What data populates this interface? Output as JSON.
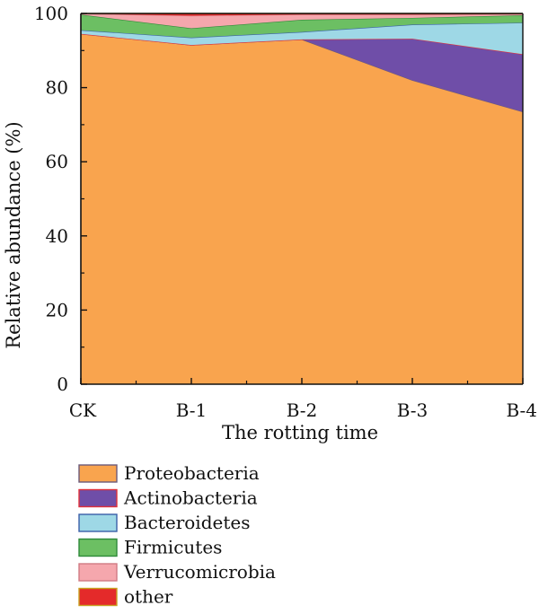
{
  "chart_data": {
    "type": "area",
    "stacked": true,
    "categories": [
      "CK",
      "B-1",
      "B-2",
      "B-3",
      "B-4"
    ],
    "xlabel": "The rotting time",
    "ylabel": "Relative abundance (%)",
    "ylim": [
      0,
      100
    ],
    "yticks": [
      0,
      20,
      40,
      60,
      80,
      100
    ],
    "grid": false,
    "legend_position": "bottom-left",
    "series": [
      {
        "name": "Proteobacteria",
        "values": [
          94.5,
          91.5,
          93.0,
          82.0,
          73.5
        ],
        "color": "#f9a44e",
        "stroke": "#6b5a7a"
      },
      {
        "name": "Actinobacteria",
        "values": [
          0.0,
          0.0,
          0.0,
          11.2,
          15.5
        ],
        "color": "#6f4ea8",
        "stroke": "#e0303a"
      },
      {
        "name": "Bacteroidetes",
        "values": [
          1.0,
          2.0,
          2.0,
          3.8,
          8.5
        ],
        "color": "#9ed8e6",
        "stroke": "#3a5fa8"
      },
      {
        "name": "Firmicutes",
        "values": [
          4.2,
          2.5,
          3.3,
          1.8,
          2.0
        ],
        "color": "#6cbf63",
        "stroke": "#2f8a3a"
      },
      {
        "name": "Verrucomicrobia",
        "values": [
          0.2,
          3.4,
          1.4,
          0.9,
          0.3
        ],
        "color": "#f5a7ad",
        "stroke": "#d07a84"
      },
      {
        "name": "other",
        "values": [
          0.1,
          0.6,
          0.3,
          0.3,
          0.2
        ],
        "color": "#e42a2a",
        "stroke": "#c8a020"
      }
    ]
  }
}
